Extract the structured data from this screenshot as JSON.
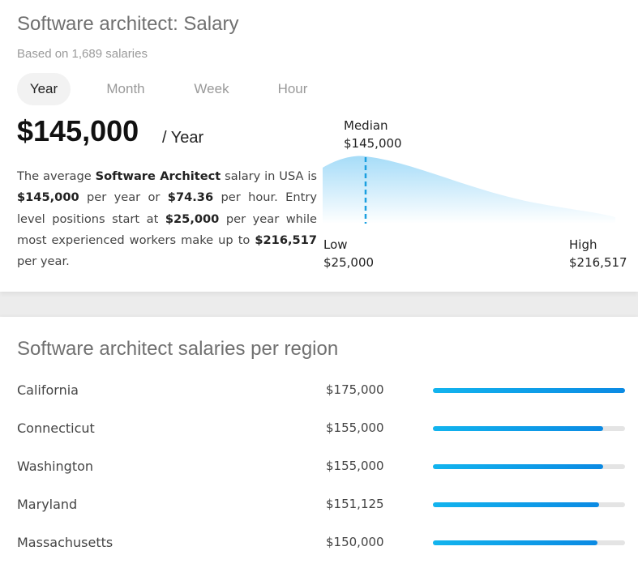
{
  "salary": {
    "title": "Software architect: Salary",
    "subtitle": "Based on 1,689 salaries",
    "tabs": [
      {
        "label": "Year",
        "active": true
      },
      {
        "label": "Month",
        "active": false
      },
      {
        "label": "Week",
        "active": false
      },
      {
        "label": "Hour",
        "active": false
      }
    ],
    "amount": "$145,000",
    "unit": "/ Year",
    "description": {
      "p1": "The average ",
      "job": "Software Architect",
      "p2": " salary in USA is ",
      "yearly": "$145,000",
      "p3": " per year or ",
      "hourly": "$74.36",
      "p4": " per hour. Entry level positions start at ",
      "entry": "$25,000",
      "p5": " per year while most experienced workers make up to ",
      "top": "$216,517",
      "p6": " per year."
    },
    "distribution": {
      "median_label": "Median",
      "median_value": "$145,000",
      "low_label": "Low",
      "low_value": "$25,000",
      "high_label": "High",
      "high_value": "$216,517"
    },
    "colors": {
      "accent": "#0b8ae3",
      "accent_light": "#12b4ee",
      "curve_fill_top": "#a6dcf8"
    }
  },
  "regions": {
    "title": "Software architect salaries per region",
    "max_value": 175000,
    "items": [
      {
        "name": "California",
        "amount": "$175,000",
        "value": 175000
      },
      {
        "name": "Connecticut",
        "amount": "$155,000",
        "value": 155000
      },
      {
        "name": "Washington",
        "amount": "$155,000",
        "value": 155000
      },
      {
        "name": "Maryland",
        "amount": "$151,125",
        "value": 151125
      },
      {
        "name": "Massachusetts",
        "amount": "$150,000",
        "value": 150000
      }
    ]
  }
}
